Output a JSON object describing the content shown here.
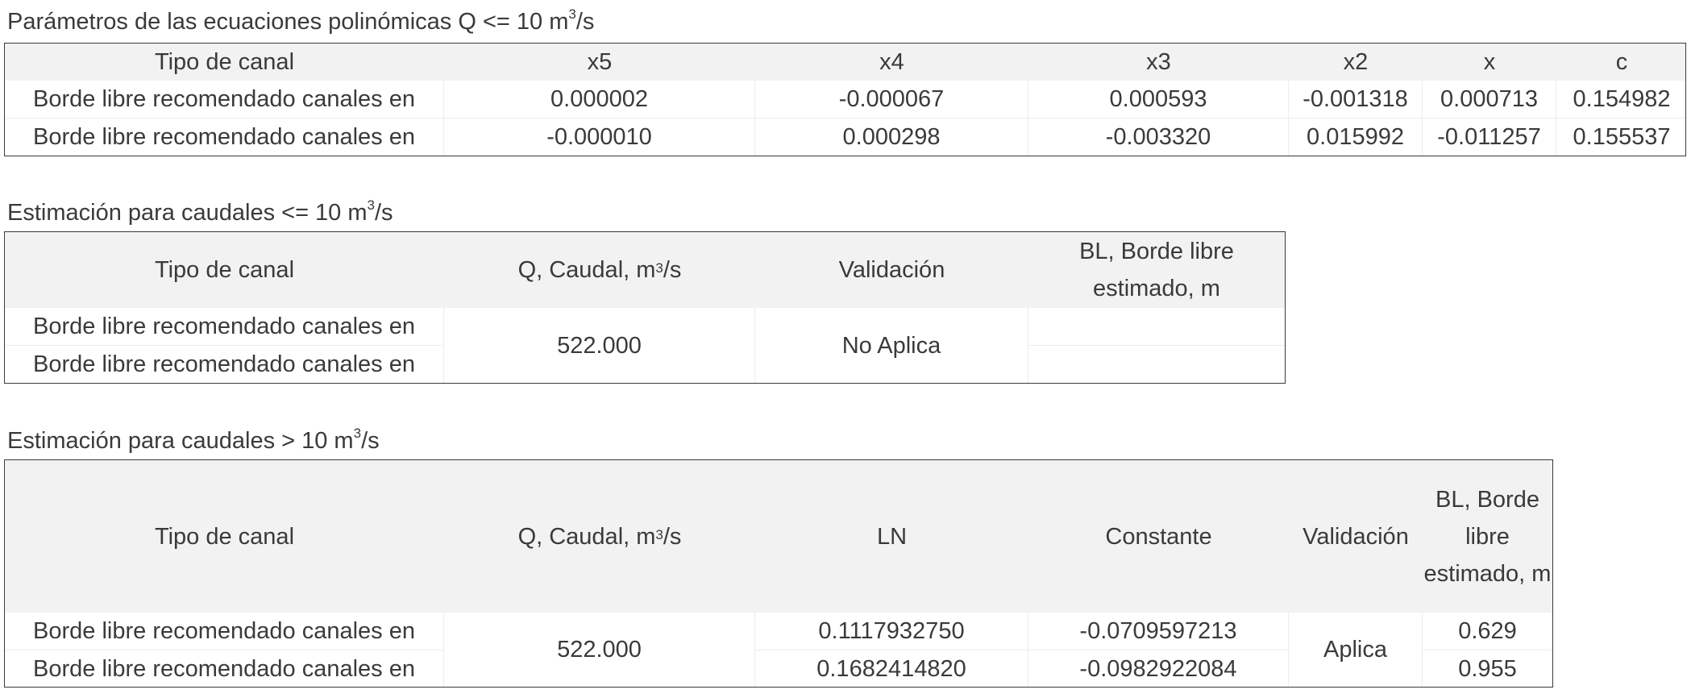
{
  "t1": {
    "title_prefix": "Parámetros de las ecuaciones polinómicas Q <= 10 m",
    "title_sup": "3",
    "title_suffix": "/s",
    "headers": [
      "Tipo de canal",
      "x5",
      "x4",
      "x3",
      "x2",
      "x",
      "c"
    ],
    "rows": [
      [
        "Borde libre recomendado canales en",
        "0.000002",
        "-0.000067",
        "0.000593",
        "-0.001318",
        "0.000713",
        "0.154982"
      ],
      [
        "Borde libre recomendado canales en",
        "-0.000010",
        "0.000298",
        "-0.003320",
        "0.015992",
        "-0.011257",
        "0.155537"
      ]
    ]
  },
  "t2": {
    "title_prefix": "Estimación para caudales <= 10 m",
    "title_sup": "3",
    "title_suffix": "/s",
    "h_tipo": "Tipo de canal",
    "h_q_prefix": "Q, Caudal, m",
    "h_q_sup": "3",
    "h_q_suffix": "/s",
    "h_valid": "Validación",
    "h_bl": "BL, Borde libre estimado, m",
    "rows": [
      "Borde libre recomendado canales en",
      "Borde libre recomendado canales en"
    ],
    "q": "522.000",
    "validacion": "No Aplica",
    "bl": [
      "",
      ""
    ]
  },
  "t3": {
    "title_prefix": "Estimación para caudales > 10 m",
    "title_sup": "3",
    "title_suffix": "/s",
    "h_tipo": "Tipo de canal",
    "h_q_prefix": "Q, Caudal, m",
    "h_q_sup": "3",
    "h_q_suffix": "/s",
    "h_ln": "LN",
    "h_const": "Constante",
    "h_valid": "Validación",
    "h_bl": "BL, Borde libre estimado, m",
    "rows": [
      "Borde libre recomendado canales en",
      "Borde libre recomendado canales en"
    ],
    "q": "522.000",
    "ln": [
      "0.1117932750",
      "0.1682414820"
    ],
    "constante": [
      "-0.0709597213",
      "-0.0982922084"
    ],
    "validacion": "Aplica",
    "bl": [
      "0.629",
      "0.955"
    ]
  }
}
